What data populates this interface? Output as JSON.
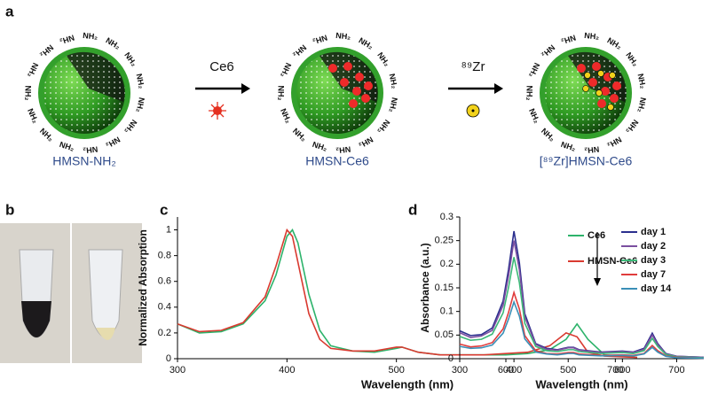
{
  "panel_labels": [
    "a",
    "b",
    "c",
    "d"
  ],
  "schematic": {
    "amine_label": "NH₂",
    "step_labels": [
      "Ce6",
      "⁸⁹Zr"
    ],
    "names": [
      "HMSN-NH₂",
      "HMSN-Ce6",
      "[⁸⁹Zr]HMSN-Ce6"
    ]
  },
  "chart_data": [
    {
      "type": "line",
      "xlabel": "Wavelength (nm)",
      "ylabel": "Normalized Absorption",
      "x": [
        300,
        320,
        340,
        360,
        380,
        390,
        400,
        405,
        410,
        420,
        430,
        440,
        460,
        480,
        500,
        505,
        520,
        540,
        560,
        580,
        600,
        620,
        640,
        655,
        665,
        675,
        690,
        720
      ],
      "series": [
        {
          "name": "Ce6",
          "color": "#2db36b",
          "values": [
            0.27,
            0.2,
            0.21,
            0.27,
            0.45,
            0.65,
            0.95,
            1.0,
            0.9,
            0.5,
            0.22,
            0.1,
            0.06,
            0.05,
            0.08,
            0.09,
            0.05,
            0.03,
            0.03,
            0.03,
            0.03,
            0.04,
            0.07,
            0.15,
            0.27,
            0.15,
            0.03,
            0.01
          ]
        },
        {
          "name": "HMSN-Ce6",
          "color": "#d93a30",
          "values": [
            0.27,
            0.21,
            0.22,
            0.28,
            0.48,
            0.72,
            1.0,
            0.95,
            0.75,
            0.35,
            0.15,
            0.08,
            0.06,
            0.06,
            0.09,
            0.09,
            0.05,
            0.03,
            0.03,
            0.03,
            0.04,
            0.05,
            0.1,
            0.2,
            0.17,
            0.05,
            0.02,
            0.01
          ]
        }
      ],
      "xlim": [
        300,
        720
      ],
      "xticks": [
        300,
        400,
        500,
        600,
        700
      ],
      "ylim": [
        0,
        1.1
      ],
      "yticks": [
        0,
        0.2,
        0.4,
        0.6,
        0.8,
        1
      ],
      "grid": false
    },
    {
      "type": "line",
      "xlabel": "Wavelength (nm)",
      "ylabel": "Absorbance (a.u.)",
      "x": [
        300,
        320,
        340,
        360,
        380,
        390,
        400,
        410,
        420,
        440,
        460,
        480,
        500,
        510,
        520,
        560,
        600,
        620,
        640,
        655,
        665,
        680,
        700,
        750
      ],
      "series": [
        {
          "name": "day 1",
          "color": "#2b2f8e",
          "values": [
            0.059,
            0.049,
            0.051,
            0.065,
            0.122,
            0.189,
            0.27,
            0.203,
            0.095,
            0.032,
            0.022,
            0.019,
            0.024,
            0.024,
            0.019,
            0.014,
            0.016,
            0.014,
            0.022,
            0.054,
            0.032,
            0.011,
            0.005,
            0.003
          ]
        },
        {
          "name": "day 2",
          "color": "#7b4fa0",
          "values": [
            0.055,
            0.045,
            0.048,
            0.06,
            0.113,
            0.175,
            0.25,
            0.188,
            0.088,
            0.03,
            0.02,
            0.018,
            0.023,
            0.023,
            0.018,
            0.013,
            0.015,
            0.013,
            0.02,
            0.05,
            0.03,
            0.01,
            0.005,
            0.003
          ]
        },
        {
          "name": "day 3",
          "color": "#3cb878",
          "values": [
            0.047,
            0.039,
            0.041,
            0.052,
            0.097,
            0.151,
            0.215,
            0.161,
            0.075,
            0.026,
            0.017,
            0.015,
            0.019,
            0.019,
            0.015,
            0.011,
            0.013,
            0.011,
            0.017,
            0.043,
            0.026,
            0.009,
            0.004,
            0.002
          ]
        },
        {
          "name": "day 7",
          "color": "#e03c3c",
          "values": [
            0.031,
            0.025,
            0.027,
            0.034,
            0.063,
            0.098,
            0.14,
            0.105,
            0.049,
            0.017,
            0.011,
            0.01,
            0.013,
            0.013,
            0.01,
            0.007,
            0.008,
            0.007,
            0.011,
            0.028,
            0.017,
            0.006,
            0.003,
            0.001
          ]
        },
        {
          "name": "day 14",
          "color": "#3a8fb7",
          "values": [
            0.026,
            0.022,
            0.023,
            0.029,
            0.054,
            0.084,
            0.12,
            0.09,
            0.042,
            0.014,
            0.01,
            0.008,
            0.011,
            0.011,
            0.008,
            0.006,
            0.007,
            0.006,
            0.01,
            0.024,
            0.014,
            0.005,
            0.002,
            0.001
          ]
        }
      ],
      "xlim": [
        300,
        750
      ],
      "xticks": [
        300,
        400,
        500,
        600,
        700
      ],
      "ylim": [
        0,
        0.3
      ],
      "yticks": [
        0,
        0.05,
        0.1,
        0.15,
        0.2,
        0.25,
        0.3
      ],
      "grid": false
    }
  ]
}
